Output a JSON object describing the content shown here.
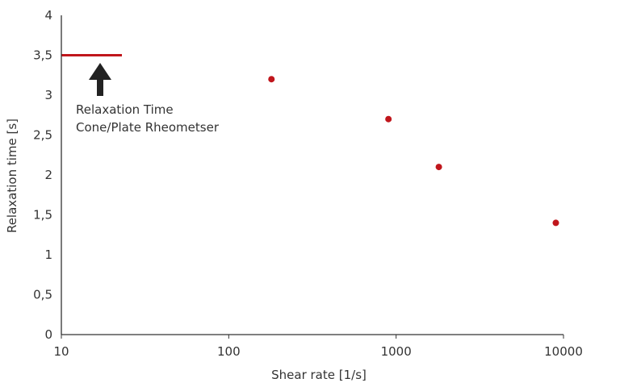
{
  "chart_data": {
    "type": "scatter",
    "title": "",
    "xlabel": "Shear rate [1/s]",
    "ylabel": "Relaxation time [s]",
    "x_scale": "log",
    "xlim": [
      10,
      10000
    ],
    "ylim": [
      0,
      4
    ],
    "grid": false,
    "x_ticks": [
      {
        "value": 10,
        "label": "10"
      },
      {
        "value": 100,
        "label": "100"
      },
      {
        "value": 1000,
        "label": "1000"
      },
      {
        "value": 10000,
        "label": "10000"
      }
    ],
    "y_ticks": [
      {
        "value": 0,
        "label": "0"
      },
      {
        "value": 0.5,
        "label": "0,5"
      },
      {
        "value": 1,
        "label": "1"
      },
      {
        "value": 1.5,
        "label": "1,5"
      },
      {
        "value": 2,
        "label": "2"
      },
      {
        "value": 2.5,
        "label": "2,5"
      },
      {
        "value": 3,
        "label": "3"
      },
      {
        "value": 3.5,
        "label": "3,5"
      },
      {
        "value": 4,
        "label": "4"
      }
    ],
    "series": [
      {
        "color": "#c0161c",
        "points": [
          {
            "x": 180,
            "y": 3.2
          },
          {
            "x": 900,
            "y": 2.7
          },
          {
            "x": 1800,
            "y": 2.1
          },
          {
            "x": 9000,
            "y": 1.4
          }
        ]
      }
    ],
    "reference_line": {
      "y": 3.5,
      "x_range": [
        10,
        23
      ],
      "color": "#c0161c"
    },
    "annotation": {
      "lines": [
        "Relaxation Time",
        "Cone/Plate Rheometser"
      ],
      "arrow": "up-arrow-icon",
      "arrow_color": "#222222"
    }
  }
}
